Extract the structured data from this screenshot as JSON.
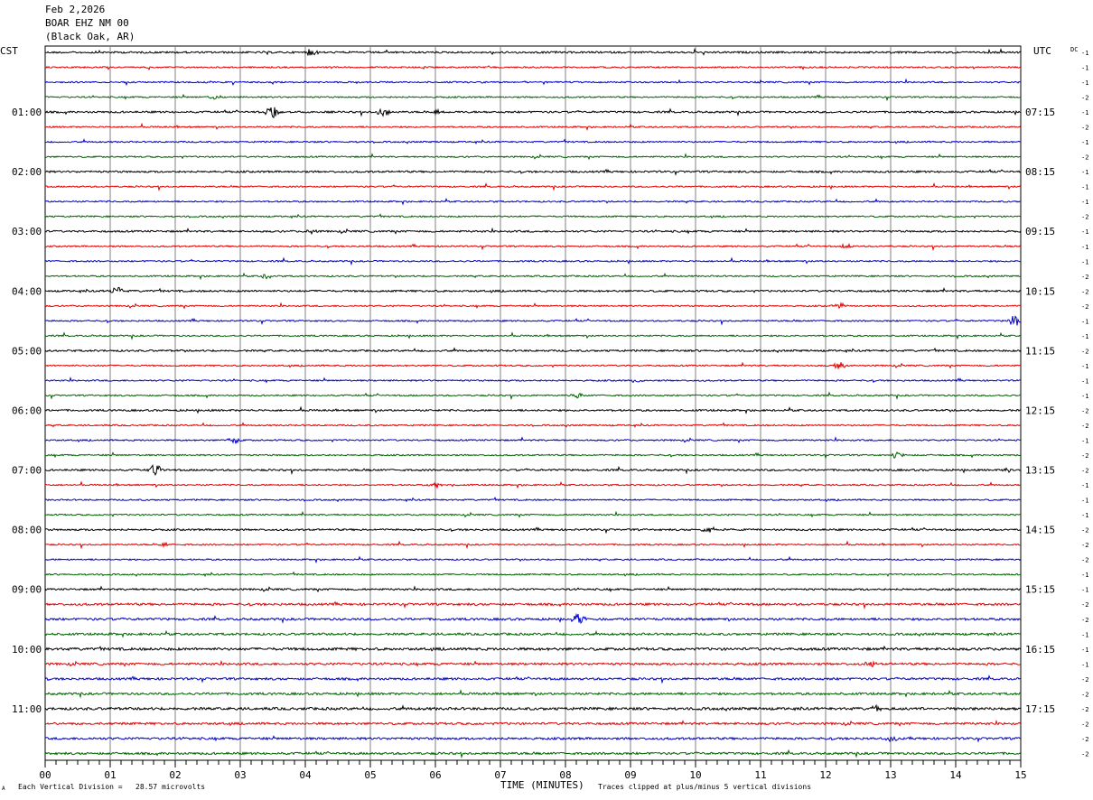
{
  "header": {
    "date": "Feb 2,2026",
    "station": "BOAR EHZ NM 00",
    "location": "(Black Oak, AR)"
  },
  "left_tz": "CST",
  "right_tz": "UTC",
  "dc_label": "DC",
  "footer": {
    "scale_note": "Each Vertical Division =   28.57 microvolts",
    "xlabel": "TIME (MINUTES)",
    "clip_note": "Traces clipped at plus/minus 5 vertical divisions",
    "corner_mark": "A"
  },
  "colors": {
    "trace_cycle": [
      "#000000",
      "#e00000",
      "#0000c8",
      "#006400"
    ],
    "grid": "#808080"
  },
  "chart_data": {
    "type": "line",
    "xlabel": "TIME (MINUTES)",
    "xlim": [
      0,
      15
    ],
    "x_ticks": [
      "00",
      "01",
      "02",
      "03",
      "04",
      "05",
      "06",
      "07",
      "08",
      "09",
      "10",
      "11",
      "12",
      "13",
      "14",
      "15"
    ],
    "minutes_per_trace": 15,
    "trace_count": 48,
    "left_hour_labels": [
      "01:00",
      "02:00",
      "03:00",
      "04:00",
      "05:00",
      "06:00",
      "07:00",
      "08:00",
      "09:00",
      "10:00",
      "11:00"
    ],
    "right_hour_labels": [
      "07:15",
      "08:15",
      "09:15",
      "10:15",
      "11:15",
      "12:15",
      "13:15",
      "14:15",
      "15:15",
      "16:15",
      "17:15"
    ],
    "dc_offsets": [
      "-1",
      "-1",
      "-1",
      "-2",
      "-1",
      "-2",
      "-1",
      "-2",
      "-1",
      "-1",
      "-1",
      "-2",
      "-1",
      "-1",
      "-1",
      "-2",
      "-2",
      "-2",
      "-1",
      "-1",
      "-2",
      "-1",
      "-1",
      "-1",
      "-2",
      "-2",
      "-1",
      "-2",
      "-2",
      "-1",
      "-1",
      "-1",
      "-2",
      "-2",
      "-2",
      "-1",
      "-1",
      "-2",
      "-2",
      "-1",
      "-1",
      "-1",
      "-2",
      "-2",
      "-2",
      "-2",
      "-2",
      "-2"
    ],
    "events": [
      {
        "trace": 0,
        "minute": 4.1,
        "amp": 5
      },
      {
        "trace": 3,
        "minute": 2.6,
        "amp": 3
      },
      {
        "trace": 4,
        "minute": 3.5,
        "amp": 10
      },
      {
        "trace": 4,
        "minute": 5.2,
        "amp": 5
      },
      {
        "trace": 4,
        "minute": 6.0,
        "amp": 3
      },
      {
        "trace": 12,
        "minute": 4.1,
        "amp": 3
      },
      {
        "trace": 13,
        "minute": 12.3,
        "amp": 5
      },
      {
        "trace": 15,
        "minute": 3.4,
        "amp": 3
      },
      {
        "trace": 16,
        "minute": 1.1,
        "amp": 7
      },
      {
        "trace": 17,
        "minute": 12.2,
        "amp": 4
      },
      {
        "trace": 18,
        "minute": 14.9,
        "amp": 9
      },
      {
        "trace": 21,
        "minute": 12.2,
        "amp": 5
      },
      {
        "trace": 22,
        "minute": 9.1,
        "amp": 3
      },
      {
        "trace": 23,
        "minute": 8.2,
        "amp": 4
      },
      {
        "trace": 26,
        "minute": 2.9,
        "amp": 4
      },
      {
        "trace": 27,
        "minute": 13.1,
        "amp": 4
      },
      {
        "trace": 28,
        "minute": 1.7,
        "amp": 7
      },
      {
        "trace": 28,
        "minute": 14.8,
        "amp": 3
      },
      {
        "trace": 29,
        "minute": 6.0,
        "amp": 5
      },
      {
        "trace": 32,
        "minute": 10.2,
        "amp": 4
      },
      {
        "trace": 33,
        "minute": 1.8,
        "amp": 3
      },
      {
        "trace": 38,
        "minute": 8.2,
        "amp": 8
      },
      {
        "trace": 41,
        "minute": 12.7,
        "amp": 4
      },
      {
        "trace": 44,
        "minute": 12.8,
        "amp": 4
      },
      {
        "trace": 46,
        "minute": 13.0,
        "amp": 3
      }
    ]
  }
}
